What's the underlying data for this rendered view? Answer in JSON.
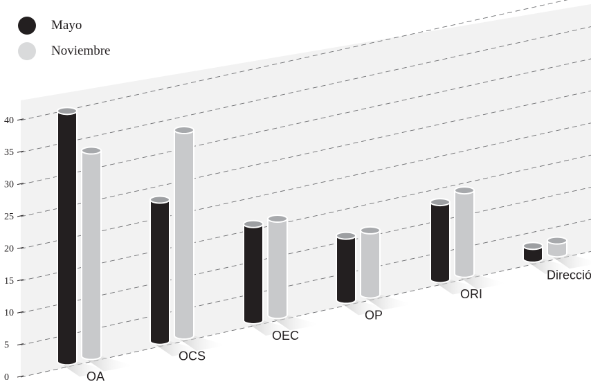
{
  "chart_data": {
    "type": "bar",
    "title": "",
    "xlabel": "",
    "ylabel": "",
    "ylim": [
      0,
      40
    ],
    "yticks": [
      0,
      5,
      10,
      15,
      20,
      25,
      30,
      35,
      40
    ],
    "categories": [
      "OA",
      "OCS",
      "OEC",
      "OP",
      "ORI",
      "Dirección"
    ],
    "series": [
      {
        "name": "Mayo",
        "color": "#231f20",
        "values": [
          39,
          22,
          15,
          10,
          12,
          2
        ]
      },
      {
        "name": "Noviembre",
        "color": "#c8c9cb",
        "values": [
          32,
          32,
          15,
          10,
          13,
          2
        ]
      }
    ],
    "legend_position": "top-left",
    "grid": true,
    "style": "3d-cylinders"
  },
  "legend": {
    "items": [
      {
        "label": "Mayo",
        "color": "#231f20"
      },
      {
        "label": "Noviembre",
        "color": "#d9dadb"
      }
    ]
  }
}
